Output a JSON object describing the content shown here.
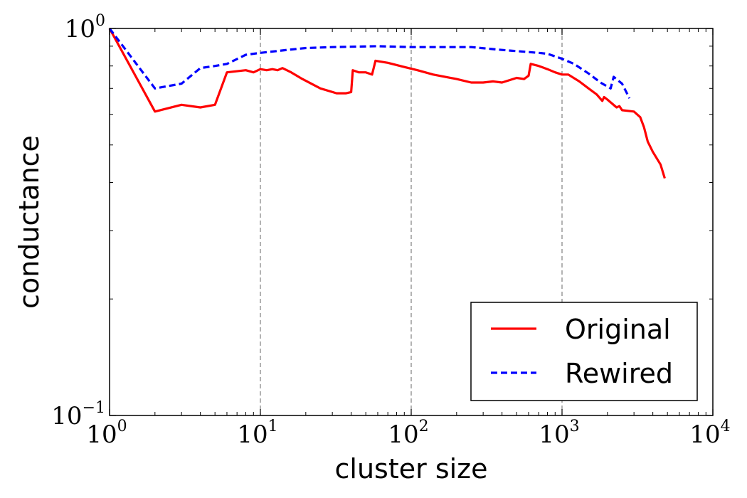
{
  "chart_data": {
    "type": "line",
    "xlabel": "cluster size",
    "ylabel": "conductance",
    "xscale": "log",
    "yscale": "log",
    "xlim": [
      1,
      10000
    ],
    "ylim": [
      0.1,
      1
    ],
    "x_ticks": [
      {
        "value": 1,
        "base": "10",
        "exp": "0"
      },
      {
        "value": 10,
        "base": "10",
        "exp": "1"
      },
      {
        "value": 100,
        "base": "10",
        "exp": "2"
      },
      {
        "value": 1000,
        "base": "10",
        "exp": "3"
      },
      {
        "value": 10000,
        "base": "10",
        "exp": "4"
      }
    ],
    "y_ticks": [
      {
        "value": 0.1,
        "base": "10",
        "exp": "−1"
      },
      {
        "value": 1,
        "base": "10",
        "exp": "0"
      }
    ],
    "grid": "vertical dashed at x major ticks",
    "legend_position": "bottom-right",
    "series": [
      {
        "name": "Original",
        "color": "#ff0000",
        "dash": "solid",
        "points": [
          [
            1,
            1.0
          ],
          [
            2,
            0.61
          ],
          [
            3,
            0.635
          ],
          [
            4,
            0.625
          ],
          [
            5,
            0.635
          ],
          [
            6,
            0.77
          ],
          [
            8,
            0.78
          ],
          [
            9,
            0.77
          ],
          [
            10,
            0.785
          ],
          [
            11,
            0.78
          ],
          [
            12,
            0.785
          ],
          [
            13,
            0.78
          ],
          [
            14,
            0.79
          ],
          [
            16,
            0.77
          ],
          [
            19,
            0.74
          ],
          [
            25,
            0.7
          ],
          [
            32,
            0.68
          ],
          [
            37,
            0.68
          ],
          [
            40,
            0.685
          ],
          [
            41,
            0.78
          ],
          [
            45,
            0.77
          ],
          [
            50,
            0.77
          ],
          [
            55,
            0.76
          ],
          [
            58,
            0.825
          ],
          [
            70,
            0.815
          ],
          [
            90,
            0.795
          ],
          [
            110,
            0.78
          ],
          [
            140,
            0.76
          ],
          [
            200,
            0.74
          ],
          [
            250,
            0.725
          ],
          [
            300,
            0.725
          ],
          [
            350,
            0.73
          ],
          [
            400,
            0.725
          ],
          [
            500,
            0.745
          ],
          [
            560,
            0.74
          ],
          [
            600,
            0.755
          ],
          [
            620,
            0.81
          ],
          [
            700,
            0.8
          ],
          [
            800,
            0.785
          ],
          [
            900,
            0.77
          ],
          [
            1000,
            0.76
          ],
          [
            1100,
            0.76
          ],
          [
            1300,
            0.73
          ],
          [
            1500,
            0.7
          ],
          [
            1700,
            0.675
          ],
          [
            1850,
            0.65
          ],
          [
            1900,
            0.665
          ],
          [
            2000,
            0.655
          ],
          [
            2300,
            0.625
          ],
          [
            2400,
            0.63
          ],
          [
            2500,
            0.615
          ],
          [
            3000,
            0.61
          ],
          [
            3300,
            0.59
          ],
          [
            3500,
            0.555
          ],
          [
            3700,
            0.51
          ],
          [
            4000,
            0.48
          ],
          [
            4500,
            0.445
          ],
          [
            4800,
            0.41
          ]
        ]
      },
      {
        "name": "Rewired",
        "color": "#0000ff",
        "dash": "dashed",
        "points": [
          [
            1,
            1.0
          ],
          [
            2,
            0.7
          ],
          [
            3,
            0.72
          ],
          [
            4,
            0.79
          ],
          [
            5,
            0.8
          ],
          [
            6,
            0.81
          ],
          [
            8,
            0.855
          ],
          [
            10,
            0.865
          ],
          [
            15,
            0.88
          ],
          [
            20,
            0.89
          ],
          [
            30,
            0.895
          ],
          [
            60,
            0.9
          ],
          [
            100,
            0.895
          ],
          [
            250,
            0.895
          ],
          [
            400,
            0.88
          ],
          [
            700,
            0.865
          ],
          [
            800,
            0.86
          ],
          [
            1000,
            0.835
          ],
          [
            1200,
            0.81
          ],
          [
            1500,
            0.765
          ],
          [
            1800,
            0.725
          ],
          [
            2100,
            0.7
          ],
          [
            2200,
            0.75
          ],
          [
            2500,
            0.72
          ],
          [
            2800,
            0.66
          ]
        ]
      }
    ]
  }
}
